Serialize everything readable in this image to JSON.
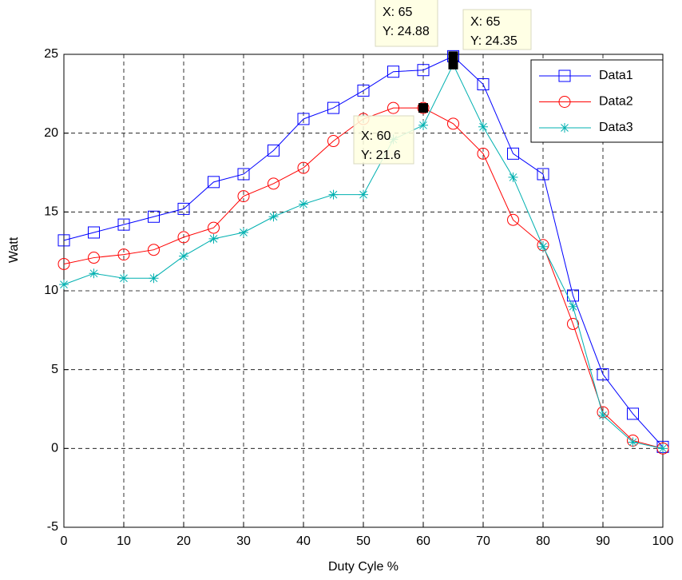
{
  "chart_data": {
    "type": "line",
    "x_label": "Duty Cyle %",
    "y_label": "Watt",
    "x": [
      0,
      5,
      10,
      15,
      20,
      25,
      30,
      35,
      40,
      45,
      50,
      55,
      60,
      65,
      70,
      75,
      80,
      85,
      90,
      95,
      100
    ],
    "series": [
      {
        "name": "Data1",
        "color": "#0000ff",
        "marker": "square",
        "values": [
          13.2,
          13.7,
          14.2,
          14.7,
          15.2,
          16.9,
          17.4,
          18.9,
          20.9,
          21.6,
          22.7,
          23.9,
          24.0,
          24.88,
          23.1,
          18.7,
          17.4,
          9.7,
          4.7,
          2.2,
          0.1
        ]
      },
      {
        "name": "Data2",
        "color": "#ff0000",
        "marker": "circle",
        "values": [
          11.7,
          12.1,
          12.3,
          12.6,
          13.4,
          14.0,
          16.0,
          16.8,
          17.8,
          19.5,
          20.9,
          21.6,
          21.6,
          20.6,
          18.7,
          14.5,
          12.9,
          7.9,
          2.3,
          0.5,
          0
        ]
      },
      {
        "name": "Data3",
        "color": "#00b0b0",
        "marker": "star",
        "values": [
          10.4,
          11.1,
          10.8,
          10.8,
          12.2,
          13.3,
          13.7,
          14.7,
          15.5,
          16.1,
          16.1,
          19.6,
          20.5,
          24.35,
          20.4,
          17.2,
          12.8,
          9.0,
          2.1,
          0.4,
          0
        ]
      }
    ],
    "xlim": [
      0,
      100
    ],
    "xticks": [
      0,
      10,
      20,
      30,
      40,
      50,
      60,
      70,
      80,
      90,
      100
    ],
    "ylim": [
      -5,
      25
    ],
    "yticks": [
      -5,
      0,
      5,
      10,
      15,
      20,
      25
    ],
    "grid": true,
    "legend": "top-right",
    "annotations": [
      {
        "x": 65,
        "y": 24.88,
        "lines": [
          "X: 65",
          "Y: 24.88"
        ]
      },
      {
        "x": 65,
        "y": 24.35,
        "lines": [
          "X: 65",
          "Y: 24.35"
        ]
      },
      {
        "x": 60,
        "y": 21.6,
        "lines": [
          "X: 60",
          "Y: 21.6"
        ]
      }
    ]
  }
}
